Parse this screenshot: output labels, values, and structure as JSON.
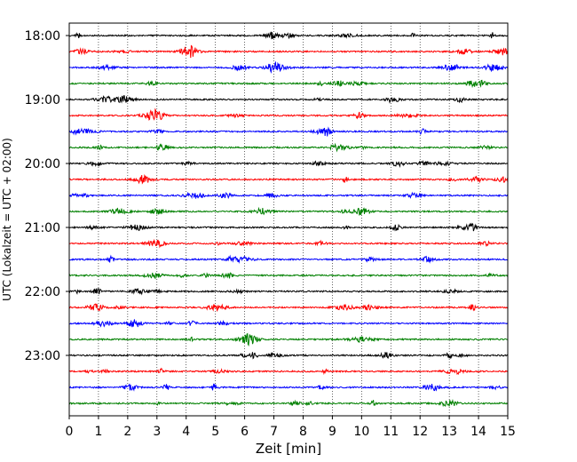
{
  "chart_data": {
    "type": "line",
    "title": "",
    "xlabel": "Zeit  [min]",
    "ylabel": "UTC (Lokalzeit = UTC + 02:00)",
    "xlim": [
      0,
      15
    ],
    "xticks": [
      0,
      1,
      2,
      3,
      4,
      5,
      6,
      7,
      8,
      9,
      10,
      11,
      12,
      13,
      14,
      15
    ],
    "xtick_labels": [
      "0",
      "1",
      "2",
      "3",
      "4",
      "5",
      "6",
      "7",
      "8",
      "9",
      "10",
      "11",
      "12",
      "13",
      "14",
      "15"
    ],
    "yticks": [
      "18:00",
      "19:00",
      "20:00",
      "21:00",
      "22:00",
      "23:00"
    ],
    "trace_interval_minutes": 15,
    "trace_start_times": [
      "18:00",
      "18:15",
      "18:30",
      "18:45",
      "19:00",
      "19:15",
      "19:30",
      "19:45",
      "20:00",
      "20:15",
      "20:30",
      "20:45",
      "21:00",
      "21:15",
      "21:30",
      "21:45",
      "22:00",
      "22:15",
      "22:30",
      "22:45",
      "23:00",
      "23:15",
      "23:30",
      "23:45"
    ],
    "trace_colors": [
      "#000000",
      "#ff0000",
      "#0000ff",
      "#008000"
    ],
    "grid": "vertical dotted at each minute"
  }
}
